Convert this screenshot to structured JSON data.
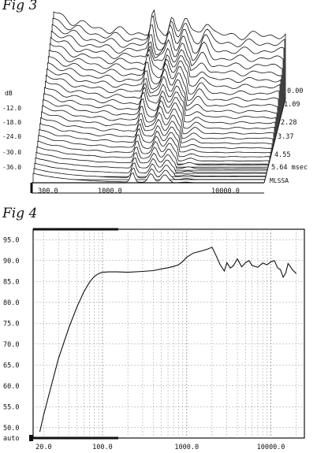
{
  "figures": {
    "fig3_label": "Fig 3",
    "fig4_label": "Fig 4"
  },
  "chart_data": [
    {
      "type": "waterfall",
      "y_unit_label": "dB",
      "y_ticks": [
        "-12.0",
        "-18.0",
        "-24.0",
        "-30.0",
        "-36.0"
      ],
      "x_ticks": [
        "300.0",
        "1000.0",
        "10000.0"
      ],
      "time_ticks": [
        "0.00",
        "1.09",
        "2.28",
        "3.37",
        "4.55",
        "5.64 msec"
      ],
      "corner_label": "MLSSA",
      "slices": 28
    },
    {
      "type": "line",
      "x_scale": "log",
      "xlim": [
        15,
        25000
      ],
      "ylim": [
        47.5,
        97.5
      ],
      "y_ticks": [
        "95.0",
        "90.0",
        "85.0",
        "80.0",
        "75.0",
        "70.0",
        "65.0",
        "60.0",
        "55.0",
        "50.0",
        "auto"
      ],
      "x_ticks": [
        "20.0",
        "100.0",
        "1000.0",
        "10000.0"
      ],
      "grid": true,
      "series": [
        {
          "x": [
            18,
            20,
            25,
            30,
            40,
            50,
            60,
            70,
            80,
            90,
            100,
            120,
            150,
            200,
            300,
            400,
            500,
            600,
            700,
            800,
            900,
            1000,
            1200,
            1500,
            1800,
            2000,
            2200,
            2500,
            2800,
            3000,
            3300,
            3600,
            4000,
            4500,
            5000,
            5500,
            6000,
            7000,
            8000,
            9000,
            10000,
            11000,
            12000,
            13000,
            14000,
            15000,
            16000,
            17000,
            18000,
            20000
          ],
          "y": [
            49.0,
            53.0,
            60.5,
            66.5,
            74.0,
            79.0,
            82.5,
            84.8,
            86.2,
            86.9,
            87.2,
            87.3,
            87.3,
            87.2,
            87.4,
            87.6,
            88.0,
            88.3,
            88.6,
            89.0,
            89.8,
            90.8,
            91.8,
            92.3,
            92.8,
            93.2,
            91.5,
            89.0,
            87.5,
            89.5,
            88.2,
            88.8,
            90.4,
            88.5,
            89.5,
            90.0,
            88.8,
            88.4,
            89.4,
            89.0,
            89.7,
            90.0,
            88.3,
            87.8,
            86.0,
            87.0,
            89.3,
            88.6,
            87.8,
            86.9
          ]
        }
      ]
    }
  ]
}
